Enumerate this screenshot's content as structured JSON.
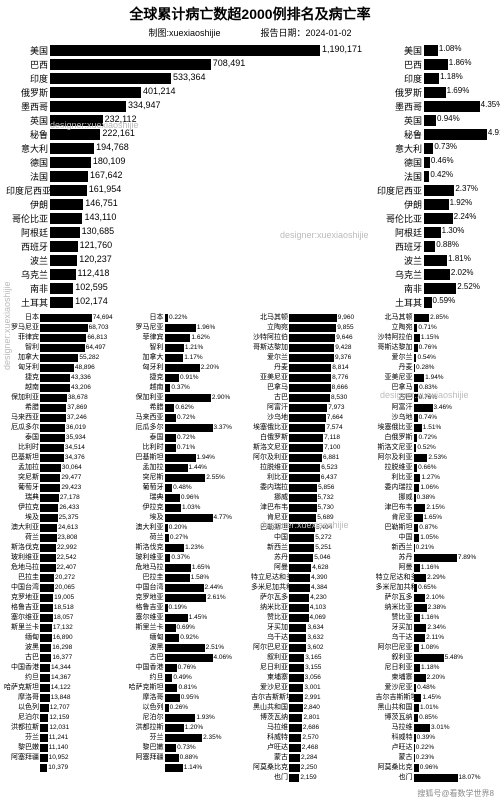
{
  "title": "全球累计病亡数超2000例排名及病亡率",
  "credit_label": "制图:",
  "credit_value": "xuexiaoshijie",
  "date_label": "报告日期：",
  "date_value": "2024-01-02",
  "footer": "搜狐号@看数学世界8",
  "watermark": "designer:xuexiaoshijie",
  "colors": {
    "bar": "#000000",
    "bg": "#ffffff",
    "text": "#000000"
  },
  "main_max": 1190171,
  "rate_max": 5.0,
  "main": [
    {
      "c": "美国",
      "v": 1190171,
      "r": 1.08
    },
    {
      "c": "巴西",
      "v": 708491,
      "r": 1.86
    },
    {
      "c": "印度",
      "v": 533364,
      "r": 1.18
    },
    {
      "c": "俄罗斯",
      "v": 401214,
      "r": 1.69
    },
    {
      "c": "墨西哥",
      "v": 334947,
      "r": 4.35
    },
    {
      "c": "英国",
      "v": 232112,
      "r": 0.94
    },
    {
      "c": "秘鲁",
      "v": 222161,
      "r": 4.91
    },
    {
      "c": "意大利",
      "v": 194768,
      "r": 0.73
    },
    {
      "c": "德国",
      "v": 180109,
      "r": 0.46
    },
    {
      "c": "法国",
      "v": 167642,
      "r": 0.42
    },
    {
      "c": "印度尼西亚",
      "v": 161954,
      "r": 2.37
    },
    {
      "c": "伊朗",
      "v": 146751,
      "r": 1.92
    },
    {
      "c": "哥伦比亚",
      "v": 143110,
      "r": 2.24
    },
    {
      "c": "阿根廷",
      "v": 130685,
      "r": 1.3
    },
    {
      "c": "西班牙",
      "v": 121760,
      "r": 0.88
    },
    {
      "c": "波兰",
      "v": 120237,
      "r": 1.81
    },
    {
      "c": "乌克兰",
      "v": 112418,
      "r": 2.02
    },
    {
      "c": "南非",
      "v": 102595,
      "r": 2.52
    },
    {
      "c": "土耳其",
      "v": 102174,
      "r": 0.59
    }
  ],
  "deaths_max": 75000,
  "col_deaths": [
    {
      "c": "日本",
      "v": 74694
    },
    {
      "c": "罗马尼亚",
      "v": 68703
    },
    {
      "c": "菲律宾",
      "v": 66813
    },
    {
      "c": "智利",
      "v": 64497
    },
    {
      "c": "加拿大",
      "v": 55282
    },
    {
      "c": "匈牙利",
      "v": 48896
    },
    {
      "c": "捷克",
      "v": 43336
    },
    {
      "c": "越南",
      "v": 43206
    },
    {
      "c": "保加利亚",
      "v": 38678
    },
    {
      "c": "希腊",
      "v": 37869
    },
    {
      "c": "马来西亚",
      "v": 37246
    },
    {
      "c": "厄瓜多尔",
      "v": 36019
    },
    {
      "c": "泰国",
      "v": 35934
    },
    {
      "c": "比利时",
      "v": 34514
    },
    {
      "c": "巴基斯坦",
      "v": 34376
    },
    {
      "c": "孟加拉",
      "v": 30064
    },
    {
      "c": "突尼斯",
      "v": 29477
    },
    {
      "c": "葡萄牙",
      "v": 29423
    },
    {
      "c": "瑞典",
      "v": 27178
    },
    {
      "c": "伊拉克",
      "v": 26433
    },
    {
      "c": "埃及",
      "v": 25375
    },
    {
      "c": "澳大利亚",
      "v": 24613
    },
    {
      "c": "荷兰",
      "v": 23808
    },
    {
      "c": "斯洛伐克",
      "v": 22992
    },
    {
      "c": "玻利维亚",
      "v": 22542
    },
    {
      "c": "危地马拉",
      "v": 22407
    },
    {
      "c": "巴拉圭",
      "v": 20272
    },
    {
      "c": "中国台湾",
      "v": 20065
    },
    {
      "c": "克罗地亚",
      "v": 19005
    },
    {
      "c": "格鲁吉亚",
      "v": 18518
    },
    {
      "c": "塞尔维亚",
      "v": 18057
    },
    {
      "c": "斯里兰卡",
      "v": 17132
    },
    {
      "c": "缅甸",
      "v": 16890
    },
    {
      "c": "波黑",
      "v": 16298
    },
    {
      "c": "古巴",
      "v": 16377
    },
    {
      "c": "中国香港",
      "v": 14344
    },
    {
      "c": "约旦",
      "v": 14367
    },
    {
      "c": "哈萨克斯坦",
      "v": 14122
    },
    {
      "c": "摩洛哥",
      "v": 13848
    },
    {
      "c": "以色列",
      "v": 12707
    },
    {
      "c": "尼泊尔",
      "v": 12159
    },
    {
      "c": "洪都拉斯",
      "v": 12031
    },
    {
      "c": "芬兰",
      "v": 11241
    },
    {
      "c": "黎巴嫩",
      "v": 11140
    },
    {
      "c": "阿塞拜疆",
      "v": 10952
    },
    {
      "c": "",
      "v": 10379
    }
  ],
  "col_rate1_max": 3.0,
  "col_rate1": [
    {
      "c": "日本",
      "v": 0.22
    },
    {
      "c": "罗马尼亚",
      "v": 1.96
    },
    {
      "c": "菲律宾",
      "v": 1.62
    },
    {
      "c": "智利",
      "v": 1.21
    },
    {
      "c": "加拿大",
      "v": 1.17
    },
    {
      "c": "匈牙利",
      "v": 2.2
    },
    {
      "c": "捷克",
      "v": 0.91
    },
    {
      "c": "越南",
      "v": 0.37
    },
    {
      "c": "保加利亚",
      "v": 2.9
    },
    {
      "c": "希腊",
      "v": 0.62
    },
    {
      "c": "马来西亚",
      "v": 0.72
    },
    {
      "c": "厄瓜多尔",
      "v": 3.37
    },
    {
      "c": "泰国",
      "v": 0.72
    },
    {
      "c": "比利时",
      "v": 0.71
    },
    {
      "c": "巴基斯坦",
      "v": 1.94
    },
    {
      "c": "孟加拉",
      "v": 1.44
    },
    {
      "c": "突尼斯",
      "v": 2.55
    },
    {
      "c": "葡萄牙",
      "v": 0.48
    },
    {
      "c": "瑞典",
      "v": 0.96
    },
    {
      "c": "伊拉克",
      "v": 1.03
    },
    {
      "c": "埃及",
      "v": 4.77
    },
    {
      "c": "澳大利亚",
      "v": 0.2
    },
    {
      "c": "荷兰",
      "v": 0.27
    },
    {
      "c": "斯洛伐克",
      "v": 1.23
    },
    {
      "c": "玻利维亚",
      "v": 0.37
    },
    {
      "c": "危地马拉",
      "v": 1.65
    },
    {
      "c": "巴拉圭",
      "v": 1.58
    },
    {
      "c": "中国台湾",
      "v": 2.44
    },
    {
      "c": "克罗地亚",
      "v": 2.61
    },
    {
      "c": "格鲁吉亚",
      "v": 0.19
    },
    {
      "c": "塞尔维亚",
      "v": 1.45
    },
    {
      "c": "斯里兰卡",
      "v": 0.69
    },
    {
      "c": "缅甸",
      "v": 0.92
    },
    {
      "c": "波黑",
      "v": 2.51
    },
    {
      "c": "古巴",
      "v": 4.06
    },
    {
      "c": "中国香港",
      "v": 0.76
    },
    {
      "c": "约旦",
      "v": 0.49
    },
    {
      "c": "哈萨克斯坦",
      "v": 0.81
    },
    {
      "c": "摩洛哥",
      "v": 0.95
    },
    {
      "c": "以色列",
      "v": 0.26
    },
    {
      "c": "尼泊尔",
      "v": 1.93
    },
    {
      "c": "洪都拉斯",
      "v": 1.2
    },
    {
      "c": "芬兰",
      "v": 2.35
    },
    {
      "c": "黎巴嫩",
      "v": 0.73
    },
    {
      "c": "阿塞拜疆",
      "v": 0.88
    },
    {
      "c": "",
      "v": 1.14
    }
  ],
  "deaths2_max": 10000,
  "col_deaths2": [
    {
      "c": "北马其顿",
      "v": 9960
    },
    {
      "c": "立陶宛",
      "v": 9855
    },
    {
      "c": "沙特阿拉伯",
      "v": 9646
    },
    {
      "c": "哥斯达黎加",
      "v": 9428
    },
    {
      "c": "爱尔兰",
      "v": 9376
    },
    {
      "c": "丹麦",
      "v": 8814
    },
    {
      "c": "亚美尼亚",
      "v": 8776
    },
    {
      "c": "巴拿马",
      "v": 8666
    },
    {
      "c": "古巴",
      "v": 8530
    },
    {
      "c": "阿富汗",
      "v": 7973
    },
    {
      "c": "沙乌地",
      "v": 7664
    },
    {
      "c": "埃塞俄比亚",
      "v": 7574
    },
    {
      "c": "白俄罗斯",
      "v": 7118
    },
    {
      "c": "斯洛文尼亚",
      "v": 7100
    },
    {
      "c": "阿尔及利亚",
      "v": 6881
    },
    {
      "c": "拉脱维亚",
      "v": 6523
    },
    {
      "c": "利比亚",
      "v": 6437
    },
    {
      "c": "委内瑞拉",
      "v": 5856
    },
    {
      "c": "挪威",
      "v": 5732
    },
    {
      "c": "津巴布韦",
      "v": 5730
    },
    {
      "c": "肯尼亚",
      "v": 5689
    },
    {
      "c": "巴勒斯坦",
      "v": 5404
    },
    {
      "c": "中国",
      "v": 5272
    },
    {
      "c": "新西兰",
      "v": 5251
    },
    {
      "c": "苏丹",
      "v": 5046
    },
    {
      "c": "阿曼",
      "v": 4628
    },
    {
      "c": "特立尼达和多巴哥",
      "v": 4390
    },
    {
      "c": "多米尼加共和国",
      "v": 4384
    },
    {
      "c": "萨尔瓦多",
      "v": 4230
    },
    {
      "c": "纳米比亚",
      "v": 4103
    },
    {
      "c": "赞比亚",
      "v": 4069
    },
    {
      "c": "牙买加",
      "v": 3634
    },
    {
      "c": "乌干达",
      "v": 3632
    },
    {
      "c": "阿尔巴尼亚",
      "v": 3602
    },
    {
      "c": "叙利亚",
      "v": 3165
    },
    {
      "c": "尼日利亚",
      "v": 3155
    },
    {
      "c": "柬埔寨",
      "v": 3056
    },
    {
      "c": "爱沙尼亚",
      "v": 3001
    },
    {
      "c": "吉尔吉斯斯坦",
      "v": 2991
    },
    {
      "c": "黑山共和国",
      "v": 2840
    },
    {
      "c": "博茨瓦纳",
      "v": 2801
    },
    {
      "c": "马拉维",
      "v": 2686
    },
    {
      "c": "科威特",
      "v": 2570
    },
    {
      "c": "卢旺达",
      "v": 2468
    },
    {
      "c": "蒙古",
      "v": 2284
    },
    {
      "c": "阿莫桑比克",
      "v": 2250
    },
    {
      "c": "也门",
      "v": 2159
    }
  ],
  "col_rate2_max": 8.0,
  "col_rate2": [
    {
      "c": "北马其顿",
      "v": 2.85
    },
    {
      "c": "立陶宛",
      "v": 0.71
    },
    {
      "c": "沙特阿拉伯",
      "v": 1.15
    },
    {
      "c": "哥斯达黎加",
      "v": 0.76
    },
    {
      "c": "爱尔兰",
      "v": 0.54
    },
    {
      "c": "丹麦",
      "v": 0.28
    },
    {
      "c": "亚美尼亚",
      "v": 1.94
    },
    {
      "c": "巴拿马",
      "v": 0.83
    },
    {
      "c": "古巴",
      "v": 0.76
    },
    {
      "c": "阿富汗",
      "v": 3.46
    },
    {
      "c": "沙乌地",
      "v": 0.74
    },
    {
      "c": "埃塞俄比亚",
      "v": 1.51
    },
    {
      "c": "白俄罗斯",
      "v": 0.72
    },
    {
      "c": "斯洛文尼亚",
      "v": 0.52
    },
    {
      "c": "阿尔及利亚",
      "v": 2.53
    },
    {
      "c": "拉脱维亚",
      "v": 0.66
    },
    {
      "c": "利比亚",
      "v": 1.27
    },
    {
      "c": "委内瑞拉",
      "v": 1.06
    },
    {
      "c": "挪威",
      "v": 0.38
    },
    {
      "c": "津巴布韦",
      "v": 2.15
    },
    {
      "c": "肯尼亚",
      "v": 1.65
    },
    {
      "c": "巴勒斯坦",
      "v": 0.87
    },
    {
      "c": "中国",
      "v": 1.05
    },
    {
      "c": "新西兰",
      "v": 0.21
    },
    {
      "c": "苏丹",
      "v": 7.89
    },
    {
      "c": "阿曼",
      "v": 1.16
    },
    {
      "c": "特立尼达和多巴哥",
      "v": 2.29
    },
    {
      "c": "多米尼加共和国",
      "v": 0.65
    },
    {
      "c": "萨尔瓦多",
      "v": 2.1
    },
    {
      "c": "纳米比亚",
      "v": 2.38
    },
    {
      "c": "赞比亚",
      "v": 1.16
    },
    {
      "c": "牙买加",
      "v": 2.34
    },
    {
      "c": "乌干达",
      "v": 2.11
    },
    {
      "c": "阿尔巴尼亚",
      "v": 1.08
    },
    {
      "c": "叙利亚",
      "v": 5.48
    },
    {
      "c": "尼日利亚",
      "v": 1.18
    },
    {
      "c": "柬埔寨",
      "v": 2.2
    },
    {
      "c": "爱沙尼亚",
      "v": 0.48
    },
    {
      "c": "吉尔吉斯斯坦",
      "v": 1.45
    },
    {
      "c": "黑山共和国",
      "v": 1.01
    },
    {
      "c": "博茨瓦纳",
      "v": 0.85
    },
    {
      "c": "马拉维",
      "v": 3.01
    },
    {
      "c": "科威特",
      "v": 0.39
    },
    {
      "c": "卢旺达",
      "v": 0.22
    },
    {
      "c": "蒙古",
      "v": 0.23
    },
    {
      "c": "阿莫桑比克",
      "v": 0.96
    },
    {
      "c": "也门",
      "v": 18.07
    }
  ]
}
